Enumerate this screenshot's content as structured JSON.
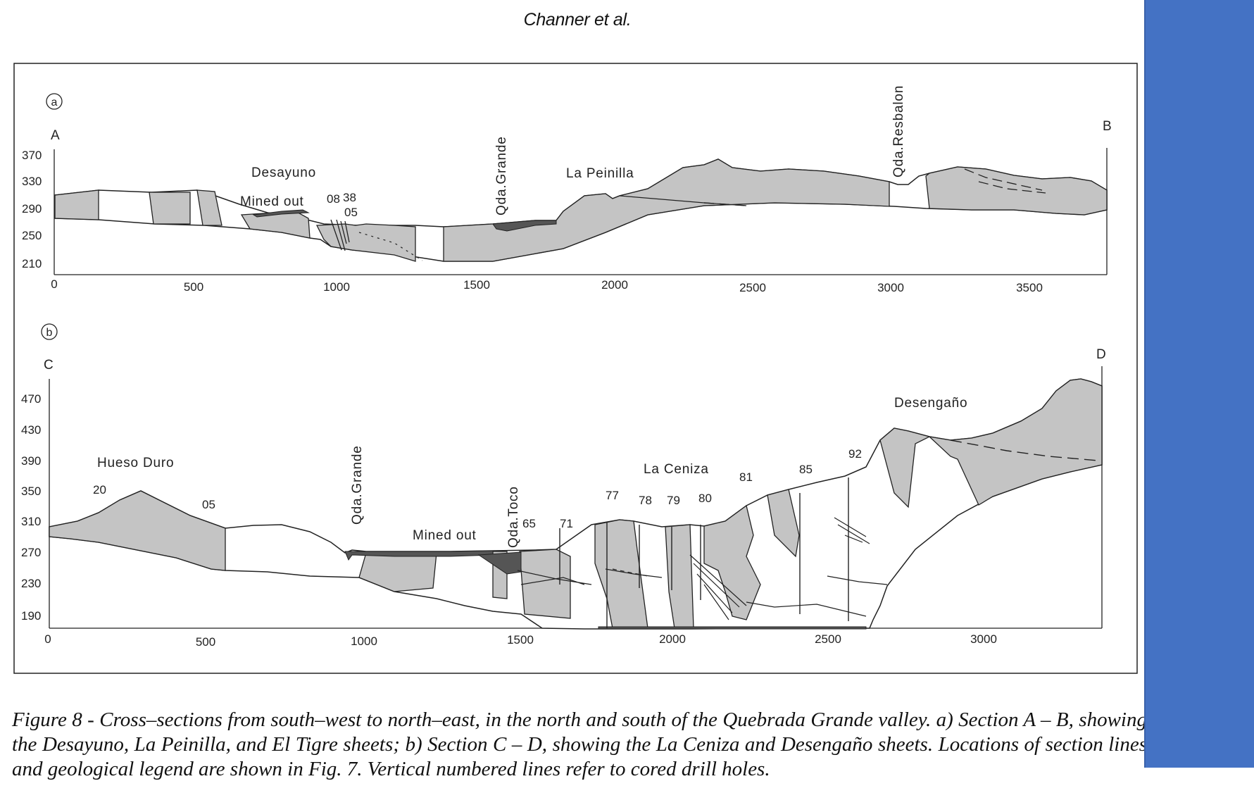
{
  "header": {
    "author": "Channer et al."
  },
  "colors": {
    "rock": "#c4c4c4",
    "dark": "#555555",
    "side_panel": "#4472c4"
  },
  "section_a": {
    "marker": "a",
    "start_label": "A",
    "end_label": "B",
    "y_ticks": [
      "370",
      "330",
      "290",
      "250",
      "210"
    ],
    "x_ticks": [
      "0",
      "500",
      "1000",
      "1500",
      "2000",
      "2500",
      "3000",
      "3500"
    ],
    "places": {
      "desayuno": "Desayuno",
      "mined_out": "Mined out",
      "qda_grande": "Qda.Grande",
      "la_peinilla": "La Peinilla",
      "qda_resbalon": "Qda.Resbalon"
    },
    "drill_holes": [
      "08",
      "38",
      "05"
    ]
  },
  "section_b": {
    "marker": "b",
    "start_label": "C",
    "end_label": "D",
    "y_ticks": [
      "470",
      "430",
      "390",
      "350",
      "310",
      "270",
      "230",
      "190"
    ],
    "x_ticks": [
      "0",
      "500",
      "1000",
      "1500",
      "2000",
      "2500",
      "3000"
    ],
    "places": {
      "hueso_duro": "Hueso Duro",
      "qda_grande": "Qda.Grande",
      "mined_out": "Mined out",
      "qda_toco": "Qda.Toco",
      "la_ceniza": "La Ceniza",
      "desengano": "Desengaño"
    },
    "drill_holes": [
      "20",
      "05",
      "65",
      "71",
      "77",
      "78",
      "79",
      "80",
      "81",
      "85",
      "92"
    ]
  },
  "caption": "Figure 8 - Cross–sections from south–west to north–east, in the north and south of the Quebrada Grande valley. a) Section A – B, showing the Desayuno, La Peinilla, and El Tigre sheets; b) Section C – D, showing the La Ceniza and Desengaño sheets. Locations of section lines and geological legend are shown in Fig. 7. Vertical numbered lines refer to cored drill holes."
}
